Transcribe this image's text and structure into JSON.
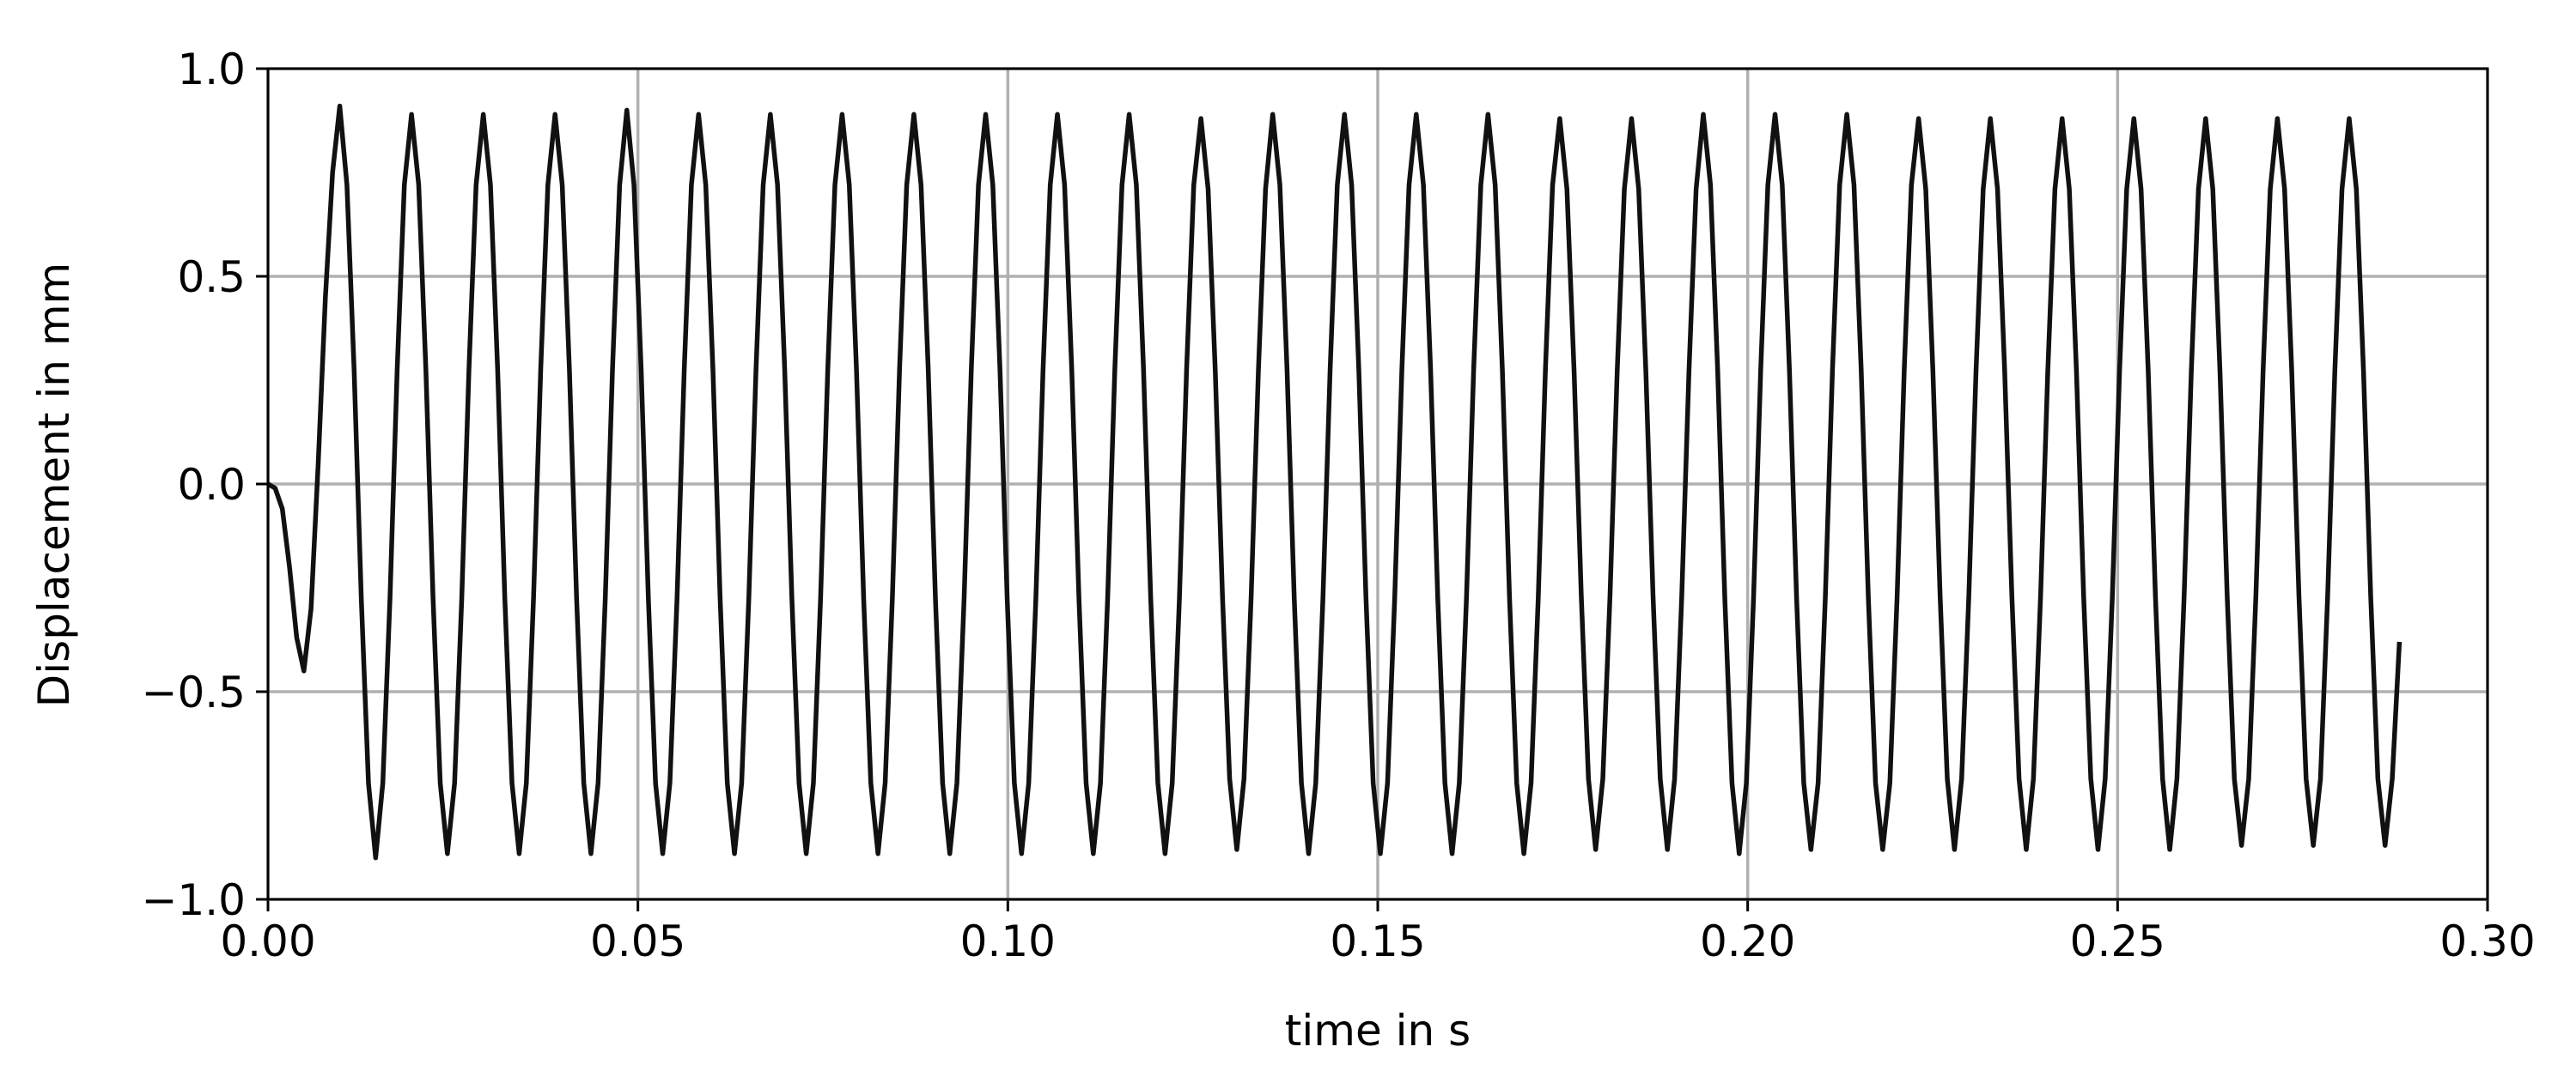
{
  "chart_data": {
    "type": "line",
    "xlabel": "time in s",
    "ylabel": "Displacement in mm",
    "x": [
      0,
      0.00097,
      0.00194,
      0.00291,
      0.00388,
      0.00485,
      0.00582,
      0.00679,
      0.00776,
      0.00873,
      0.0097,
      0.01067,
      0.01164,
      0.01261,
      0.01358,
      0.01455,
      0.01552,
      0.01649,
      0.01746,
      0.01843,
      0.0194,
      0.02037,
      0.02134,
      0.02231,
      0.02328,
      0.02425,
      0.02522,
      0.02619,
      0.02716,
      0.02813,
      0.0291,
      0.03007,
      0.03104,
      0.03201,
      0.03298,
      0.03395,
      0.03492,
      0.03589,
      0.03686,
      0.03783,
      0.0388,
      0.03977,
      0.04074,
      0.04171,
      0.04268,
      0.04365,
      0.04462,
      0.04559,
      0.04656,
      0.04753,
      0.0485,
      0.04947,
      0.05044,
      0.05141,
      0.05238,
      0.05335,
      0.05432,
      0.05529,
      0.05626,
      0.05723,
      0.0582,
      0.05917,
      0.06014,
      0.06111,
      0.06208,
      0.06305,
      0.06402,
      0.06499,
      0.06596,
      0.06693,
      0.0679,
      0.06887,
      0.06984,
      0.07081,
      0.07178,
      0.07275,
      0.07372,
      0.07469,
      0.07566,
      0.07663,
      0.0776,
      0.07857,
      0.07954,
      0.08051,
      0.08148,
      0.08245,
      0.08342,
      0.08439,
      0.08536,
      0.08633,
      0.0873,
      0.08827,
      0.08924,
      0.09021,
      0.09118,
      0.09215,
      0.09312,
      0.09409,
      0.09506,
      0.09603,
      0.097,
      0.09797,
      0.09894,
      0.09991,
      0.10088,
      0.10185,
      0.10282,
      0.10379,
      0.10476,
      0.10573,
      0.1067,
      0.10767,
      0.10864,
      0.10961,
      0.11058,
      0.11155,
      0.11252,
      0.11349,
      0.11446,
      0.11543,
      0.1164,
      0.11737,
      0.11834,
      0.11931,
      0.12028,
      0.12125,
      0.12222,
      0.12319,
      0.12416,
      0.12513,
      0.1261,
      0.12707,
      0.12804,
      0.12901,
      0.12998,
      0.13095,
      0.13192,
      0.13289,
      0.13386,
      0.13483,
      0.1358,
      0.13677,
      0.13774,
      0.13871,
      0.13968,
      0.14065,
      0.14162,
      0.14259,
      0.14356,
      0.14453,
      0.1455,
      0.14647,
      0.14744,
      0.14841,
      0.14938,
      0.15035,
      0.15132,
      0.15229,
      0.15326,
      0.15423,
      0.1552,
      0.15617,
      0.15714,
      0.15811,
      0.15908,
      0.16005,
      0.16102,
      0.16199,
      0.16296,
      0.16393,
      0.1649,
      0.16587,
      0.16684,
      0.16781,
      0.16878,
      0.16975,
      0.17072,
      0.17169,
      0.17266,
      0.17363,
      0.1746,
      0.17557,
      0.17654,
      0.17751,
      0.17848,
      0.17945,
      0.18042,
      0.18139,
      0.18236,
      0.18333,
      0.1843,
      0.18527,
      0.18624,
      0.18721,
      0.18818,
      0.18915,
      0.19012,
      0.19109,
      0.19206,
      0.19303,
      0.194,
      0.19497,
      0.19594,
      0.19691,
      0.19788,
      0.19885,
      0.19982,
      0.20079,
      0.20176,
      0.20273,
      0.2037,
      0.20467,
      0.20564,
      0.20661,
      0.20758,
      0.20855,
      0.20952,
      0.21049,
      0.21146,
      0.21243,
      0.2134,
      0.21437,
      0.21534,
      0.21631,
      0.21728,
      0.21825,
      0.21922,
      0.22019,
      0.22116,
      0.22213,
      0.2231,
      0.22407,
      0.22504,
      0.22601,
      0.22698,
      0.22795,
      0.22892,
      0.22989,
      0.23086,
      0.23183,
      0.2328,
      0.23377,
      0.23474,
      0.23571,
      0.23668,
      0.23765,
      0.23862,
      0.23959,
      0.24056,
      0.24153,
      0.2425,
      0.24347,
      0.24444,
      0.24541,
      0.24638,
      0.24735,
      0.24832,
      0.24929,
      0.25026,
      0.25123,
      0.2522,
      0.25317,
      0.25414,
      0.25511,
      0.25608,
      0.25705,
      0.25802,
      0.25899,
      0.25996,
      0.26093,
      0.2619,
      0.26287,
      0.26384,
      0.26481,
      0.26578,
      0.26675,
      0.26772,
      0.26869,
      0.26966,
      0.27063,
      0.2716,
      0.27257,
      0.27354,
      0.27451,
      0.27548,
      0.27645,
      0.27742,
      0.27839,
      0.27936,
      0.28033,
      0.2813,
      0.28227,
      0.28324,
      0.28421,
      0.28518,
      0.28615,
      0.28712,
      0.28809
    ],
    "series": [
      {
        "color": "#111111",
        "values": [
          0,
          -0.01,
          -0.06,
          -0.2,
          -0.37,
          -0.45,
          -0.3,
          0.05,
          0.45,
          0.75,
          0.91,
          0.72,
          0.275,
          -0.275,
          -0.72,
          -0.9,
          -0.72,
          -0.275,
          0.275,
          0.72,
          0.89,
          0.72,
          0.275,
          -0.275,
          -0.72,
          -0.89,
          -0.72,
          -0.275,
          0.275,
          0.72,
          0.89,
          0.72,
          0.275,
          -0.275,
          -0.72,
          -0.89,
          -0.72,
          -0.275,
          0.275,
          0.72,
          0.89,
          0.72,
          0.275,
          -0.275,
          -0.72,
          -0.89,
          -0.72,
          -0.275,
          0.275,
          0.72,
          0.9,
          0.72,
          0.275,
          -0.275,
          -0.72,
          -0.89,
          -0.72,
          -0.275,
          0.275,
          0.72,
          0.89,
          0.72,
          0.275,
          -0.275,
          -0.72,
          -0.89,
          -0.72,
          -0.275,
          0.275,
          0.72,
          0.89,
          0.72,
          0.275,
          -0.275,
          -0.72,
          -0.89,
          -0.72,
          -0.275,
          0.275,
          0.72,
          0.89,
          0.72,
          0.275,
          -0.275,
          -0.72,
          -0.89,
          -0.72,
          -0.275,
          0.275,
          0.72,
          0.89,
          0.72,
          0.275,
          -0.275,
          -0.72,
          -0.89,
          -0.72,
          -0.275,
          0.275,
          0.72,
          0.89,
          0.72,
          0.275,
          -0.275,
          -0.72,
          -0.89,
          -0.72,
          -0.275,
          0.275,
          0.72,
          0.89,
          0.72,
          0.275,
          -0.275,
          -0.72,
          -0.89,
          -0.72,
          -0.275,
          0.275,
          0.72,
          0.89,
          0.72,
          0.275,
          -0.275,
          -0.72,
          -0.89,
          -0.72,
          -0.275,
          0.275,
          0.72,
          0.88,
          0.71,
          0.27,
          -0.27,
          -0.71,
          -0.88,
          -0.71,
          -0.27,
          0.27,
          0.71,
          0.89,
          0.72,
          0.275,
          -0.275,
          -0.72,
          -0.89,
          -0.72,
          -0.275,
          0.275,
          0.72,
          0.89,
          0.72,
          0.275,
          -0.275,
          -0.72,
          -0.89,
          -0.72,
          -0.275,
          0.275,
          0.72,
          0.89,
          0.72,
          0.275,
          -0.275,
          -0.72,
          -0.89,
          -0.72,
          -0.275,
          0.275,
          0.72,
          0.89,
          0.72,
          0.275,
          -0.275,
          -0.72,
          -0.89,
          -0.72,
          -0.275,
          0.275,
          0.72,
          0.88,
          0.71,
          0.27,
          -0.27,
          -0.71,
          -0.88,
          -0.71,
          -0.27,
          0.27,
          0.71,
          0.88,
          0.71,
          0.27,
          -0.27,
          -0.71,
          -0.88,
          -0.71,
          -0.27,
          0.27,
          0.71,
          0.89,
          0.72,
          0.275,
          -0.275,
          -0.72,
          -0.89,
          -0.72,
          -0.275,
          0.275,
          0.72,
          0.89,
          0.72,
          0.275,
          -0.275,
          -0.72,
          -0.88,
          -0.72,
          -0.275,
          0.275,
          0.72,
          0.89,
          0.72,
          0.275,
          -0.275,
          -0.72,
          -0.88,
          -0.72,
          -0.275,
          0.275,
          0.72,
          0.88,
          0.71,
          0.27,
          -0.27,
          -0.71,
          -0.88,
          -0.71,
          -0.27,
          0.27,
          0.71,
          0.88,
          0.71,
          0.27,
          -0.27,
          -0.71,
          -0.88,
          -0.71,
          -0.27,
          0.27,
          0.71,
          0.88,
          0.71,
          0.27,
          -0.27,
          -0.71,
          -0.88,
          -0.71,
          -0.27,
          0.27,
          0.71,
          0.88,
          0.71,
          0.27,
          -0.27,
          -0.71,
          -0.88,
          -0.71,
          -0.27,
          0.27,
          0.71,
          0.88,
          0.71,
          0.27,
          -0.27,
          -0.71,
          -0.87,
          -0.71,
          -0.27,
          0.27,
          0.71,
          0.88,
          0.71,
          0.27,
          -0.27,
          -0.71,
          -0.87,
          -0.71,
          -0.27,
          0.27,
          0.71,
          0.88,
          0.71,
          0.27,
          -0.27,
          -0.71,
          -0.87,
          -0.71,
          -0.38
        ]
      }
    ],
    "xlim": [
      0,
      0.3
    ],
    "xticks": [
      {
        "value": 0,
        "label": "0.00"
      },
      {
        "value": 0.05,
        "label": "0.05"
      },
      {
        "value": 0.1,
        "label": "0.10"
      },
      {
        "value": 0.15,
        "label": "0.15"
      },
      {
        "value": 0.2,
        "label": "0.20"
      },
      {
        "value": 0.25,
        "label": "0.25"
      },
      {
        "value": 0.3,
        "label": "0.30"
      }
    ],
    "ylim": [
      -1,
      1
    ],
    "yticks": [
      {
        "value": -1,
        "label": "−1.0"
      },
      {
        "value": -0.5,
        "label": "−0.5"
      },
      {
        "value": 0,
        "label": "0.0"
      },
      {
        "value": 0.5,
        "label": "0.5"
      },
      {
        "value": 1,
        "label": "1.0"
      }
    ],
    "grid": true
  }
}
